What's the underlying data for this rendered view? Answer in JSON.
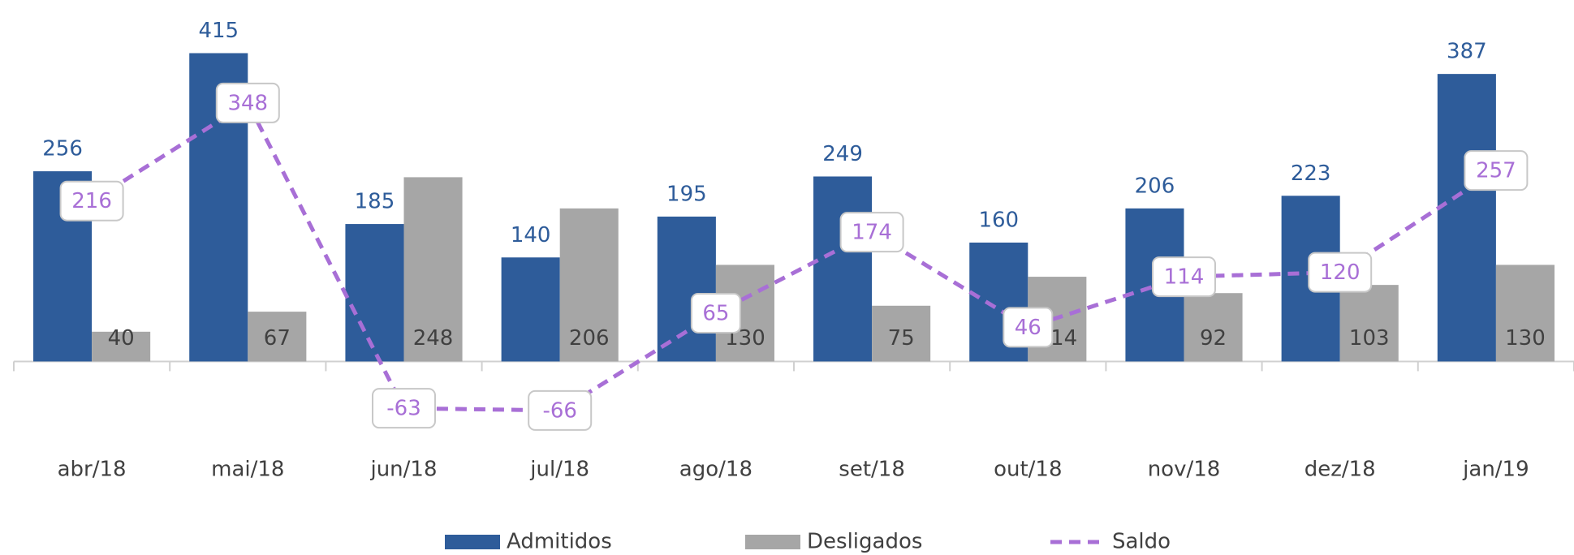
{
  "chart_data": {
    "type": "bar-line",
    "categories": [
      "abr/18",
      "mai/18",
      "jun/18",
      "jul/18",
      "ago/18",
      "set/18",
      "out/18",
      "nov/18",
      "dez/18",
      "jan/19"
    ],
    "series": [
      {
        "name": "Admitidos",
        "type": "bar",
        "color": "#2e5c9a",
        "values": [
          256,
          415,
          185,
          140,
          195,
          249,
          160,
          206,
          223,
          387
        ]
      },
      {
        "name": "Desligados",
        "type": "bar",
        "color": "#a6a6a6",
        "values": [
          40,
          67,
          248,
          206,
          130,
          75,
          114,
          92,
          103,
          130
        ]
      },
      {
        "name": "Saldo",
        "type": "line",
        "color": "#a86fd6",
        "values": [
          216,
          348,
          -63,
          -66,
          65,
          174,
          46,
          114,
          120,
          257
        ]
      }
    ],
    "ylim": [
      -100,
      480
    ],
    "legend": "bottom"
  }
}
